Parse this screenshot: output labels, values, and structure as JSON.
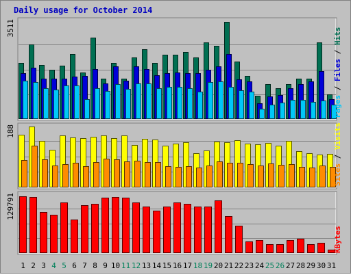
{
  "chart_data": [
    {
      "type": "bar",
      "title": "Daily usage for October 2014",
      "categories": [
        "1",
        "2",
        "3",
        "4",
        "5",
        "6",
        "7",
        "8",
        "9",
        "10",
        "11",
        "12",
        "13",
        "14",
        "15",
        "16",
        "17",
        "18",
        "19",
        "20",
        "21",
        "22",
        "23",
        "24",
        "25",
        "26",
        "27",
        "28",
        "29",
        "30",
        "31"
      ],
      "weekend_days": [
        "4",
        "5",
        "11",
        "12",
        "18",
        "19",
        "25",
        "26"
      ],
      "ylabel_max": "3511",
      "ylim": [
        0,
        3511
      ],
      "legend": [
        "Pages",
        "Files",
        "Hits"
      ],
      "series": [
        {
          "name": "Hits",
          "color": "#006f52",
          "values": [
            1980,
            2640,
            1920,
            1740,
            1880,
            2300,
            1650,
            2880,
            1440,
            1980,
            1440,
            2180,
            2460,
            1980,
            2280,
            2280,
            2370,
            2190,
            2720,
            2590,
            3430,
            2040,
            1520,
            820,
            1240,
            1100,
            1240,
            1420,
            1440,
            2720,
            880
          ]
        },
        {
          "name": "Files",
          "color": "#0000d8",
          "values": [
            1620,
            1810,
            1440,
            1420,
            1440,
            1510,
            1520,
            1760,
            1260,
            1860,
            1350,
            1860,
            1770,
            1560,
            1630,
            1650,
            1630,
            1620,
            1750,
            1860,
            2310,
            1410,
            1340,
            550,
            810,
            850,
            1100,
            1240,
            1340,
            1690,
            710
          ]
        },
        {
          "name": "Pages",
          "color": "#00c8f8",
          "values": [
            1360,
            1300,
            1100,
            1050,
            1180,
            1190,
            700,
            1100,
            1000,
            1240,
            1070,
            1250,
            1260,
            1080,
            1140,
            1130,
            1100,
            960,
            1300,
            1320,
            1130,
            1010,
            960,
            370,
            500,
            570,
            680,
            680,
            600,
            650,
            500
          ]
        }
      ]
    },
    {
      "type": "bar",
      "categories": [
        "1",
        "2",
        "3",
        "4",
        "5",
        "6",
        "7",
        "8",
        "9",
        "10",
        "11",
        "12",
        "13",
        "14",
        "15",
        "16",
        "17",
        "18",
        "19",
        "20",
        "21",
        "22",
        "23",
        "24",
        "25",
        "26",
        "27",
        "28",
        "29",
        "30",
        "31"
      ],
      "ylabel_max": "188",
      "ylim": [
        0,
        188
      ],
      "legend": [
        "Sites",
        "Visits"
      ],
      "series": [
        {
          "name": "Visits",
          "color": "#ffff00",
          "values": [
            159,
            184,
            140,
            114,
            157,
            150,
            148,
            152,
            158,
            149,
            156,
            128,
            146,
            144,
            125,
            132,
            136,
            104,
            112,
            139,
            137,
            143,
            132,
            131,
            135,
            126,
            140,
            110,
            103,
            100,
            102
          ]
        },
        {
          "name": "Sites",
          "color": "#ff8c00",
          "values": [
            82,
            125,
            84,
            67,
            71,
            75,
            64,
            76,
            86,
            84,
            78,
            80,
            76,
            77,
            64,
            63,
            65,
            59,
            66,
            78,
            74,
            74,
            71,
            67,
            73,
            68,
            71,
            63,
            60,
            67,
            62
          ]
        }
      ]
    },
    {
      "type": "bar",
      "categories": [
        "1",
        "2",
        "3",
        "4",
        "5",
        "6",
        "7",
        "8",
        "9",
        "10",
        "11",
        "12",
        "13",
        "14",
        "15",
        "16",
        "17",
        "18",
        "19",
        "20",
        "21",
        "22",
        "23",
        "24",
        "25",
        "26",
        "27",
        "28",
        "29",
        "30",
        "31"
      ],
      "ylabel_max": "129791",
      "ylim": [
        0,
        129791
      ],
      "legend": [
        "KBytes"
      ],
      "series": [
        {
          "name": "KBytes",
          "color": "#ff0000",
          "values": [
            124000,
            122000,
            89000,
            83000,
            110000,
            73000,
            104000,
            107000,
            121000,
            122000,
            121000,
            110000,
            102000,
            92000,
            102000,
            110000,
            107000,
            101000,
            102000,
            115000,
            80000,
            60000,
            26000,
            29000,
            20000,
            19000,
            28000,
            31000,
            20000,
            23000,
            8000
          ]
        }
      ]
    }
  ]
}
